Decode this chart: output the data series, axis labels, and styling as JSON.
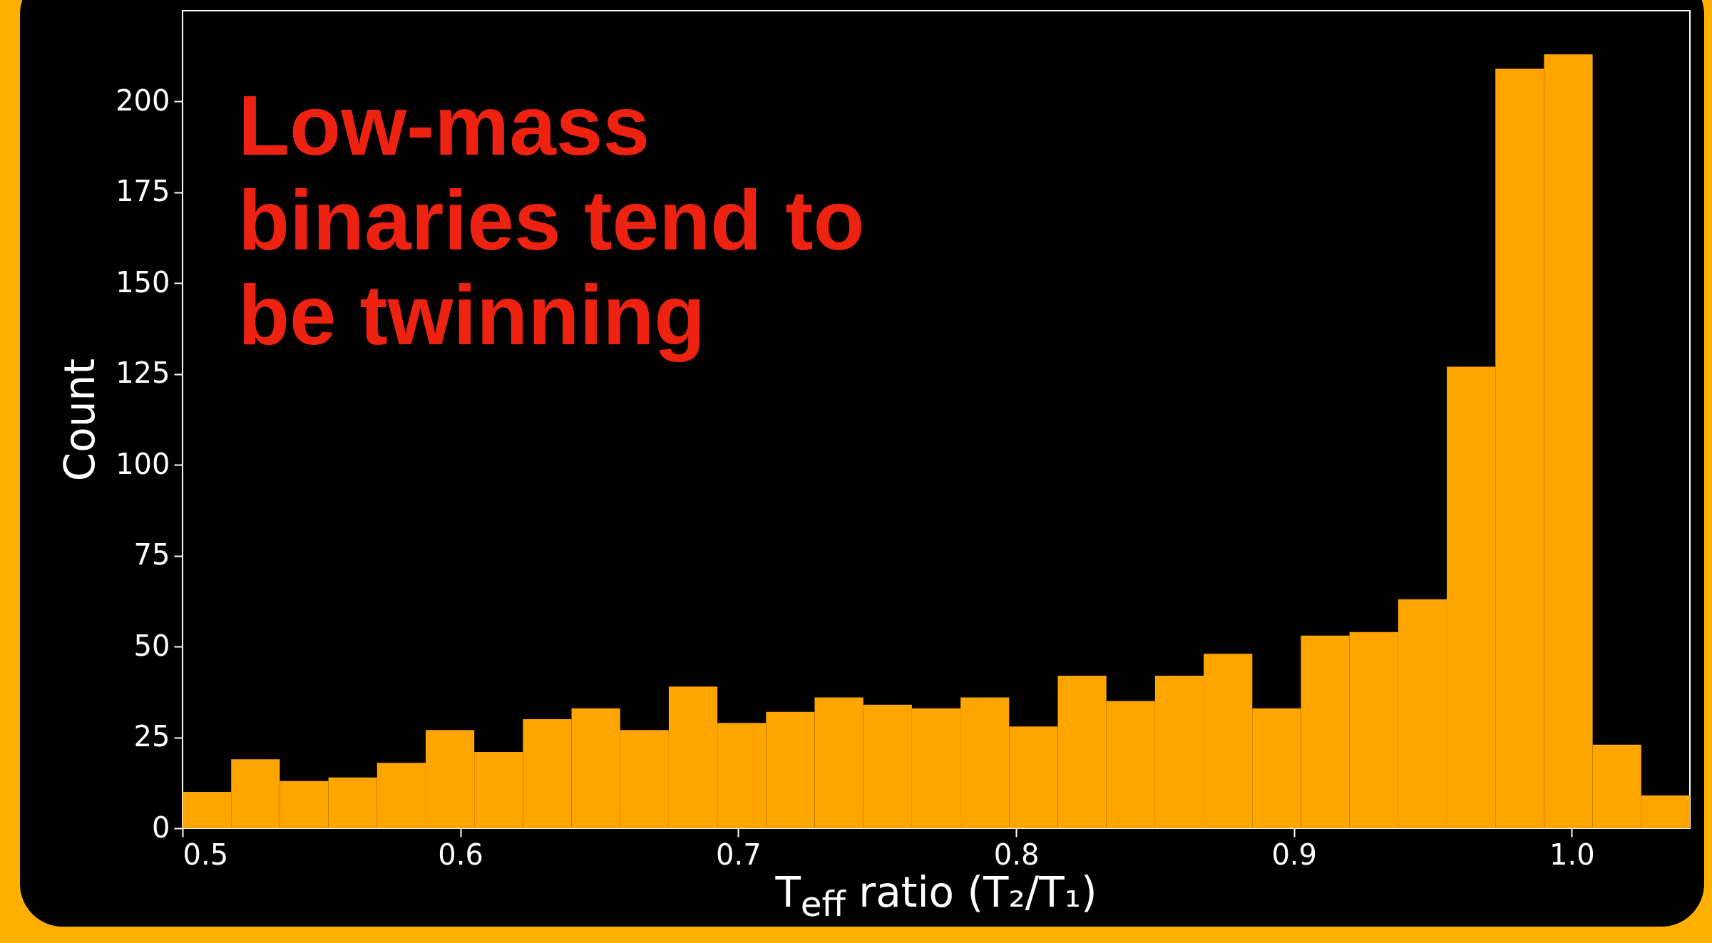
{
  "chart_data": {
    "type": "histogram",
    "xlabel": "T$_{eff}$ ratio (T₂/T₁)",
    "ylabel": "Count",
    "annotations": [
      "Low-mass binaries tend to be twinning"
    ],
    "bins": [
      0.5,
      0.5175,
      0.535,
      0.5525,
      0.57,
      0.5875,
      0.605,
      0.6225,
      0.64,
      0.6575,
      0.675,
      0.6925,
      0.71,
      0.7275,
      0.745,
      0.7625,
      0.78,
      0.7975,
      0.815,
      0.8325,
      0.85,
      0.8675,
      0.885,
      0.9025,
      0.92,
      0.9375,
      0.955,
      0.9725,
      0.99,
      1.0075,
      1.025,
      1.0425
    ],
    "values": [
      10,
      19,
      13,
      14,
      18,
      27,
      21,
      30,
      33,
      27,
      39,
      29,
      32,
      36,
      34,
      33,
      36,
      28,
      42,
      35,
      42,
      48,
      33,
      53,
      54,
      63,
      127,
      209,
      213,
      23,
      9
    ],
    "color": "#ffa500",
    "xlim": [
      0.5,
      1.0425
    ],
    "ylim": [
      0,
      225
    ],
    "xticks": [
      0.5,
      0.6,
      0.7,
      0.8,
      0.9,
      {
        "value": 1,
        "label": "1.0"
      }
    ],
    "yticks": [
      0,
      25,
      50,
      75,
      100,
      125,
      150,
      175,
      200
    ],
    "grid": false
  }
}
